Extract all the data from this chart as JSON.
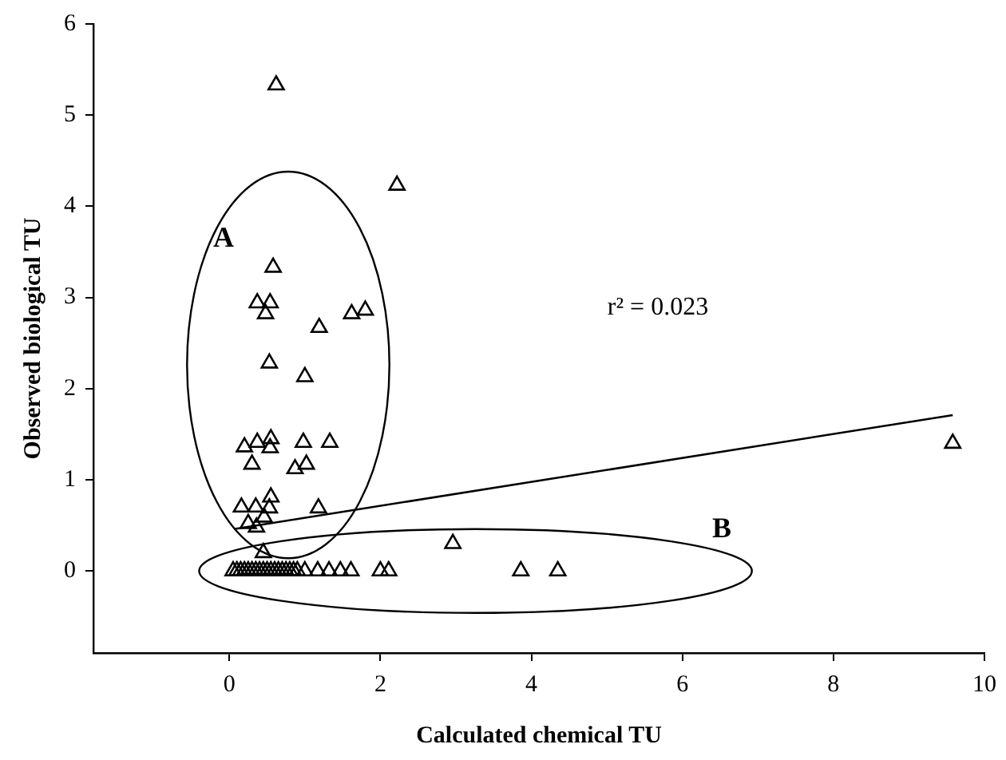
{
  "chart_data": {
    "type": "scatter",
    "xlabel": "Calculated chemical TU",
    "ylabel": "Observed biological TU",
    "xlim": [
      -1.8,
      10
    ],
    "xticks": [
      0,
      2,
      4,
      6,
      8,
      10
    ],
    "ylim": [
      -0.9,
      6
    ],
    "yticks": [
      0,
      1,
      2,
      3,
      4,
      5,
      6
    ],
    "grid": false,
    "legend": false,
    "marker": "triangle",
    "annotations": [
      "A",
      "B",
      "r² = 0.023"
    ],
    "series": [
      {
        "type": "scatter",
        "color": "#000000",
        "x": [
          0.62,
          2.22,
          0.58,
          0.37,
          0.54,
          0.48,
          1.62,
          1.8,
          1.19,
          0.53,
          1.0,
          0.2,
          0.37,
          0.55,
          0.54,
          0.98,
          1.33,
          0.3,
          0.87,
          1.02,
          0.16,
          0.35,
          0.55,
          0.53,
          1.18,
          0.25,
          0.46,
          0.36,
          0.45,
          2.96,
          9.58,
          0.05,
          0.1,
          0.15,
          0.2,
          0.25,
          0.3,
          0.35,
          0.4,
          0.45,
          0.5,
          0.55,
          0.6,
          0.65,
          0.7,
          0.75,
          0.8,
          0.85,
          0.9,
          1.0,
          1.17,
          1.32,
          1.47,
          1.61,
          2.0,
          2.11,
          3.86,
          4.35
        ],
        "values": [
          5.33,
          4.23,
          3.33,
          2.94,
          2.94,
          2.82,
          2.82,
          2.86,
          2.67,
          2.28,
          2.13,
          1.36,
          1.41,
          1.45,
          1.35,
          1.41,
          1.41,
          1.17,
          1.12,
          1.17,
          0.7,
          0.7,
          0.81,
          0.69,
          0.69,
          0.52,
          0.59,
          0.48,
          0.2,
          0.3,
          1.4,
          0,
          0,
          0,
          0,
          0,
          0,
          0,
          0,
          0,
          0,
          0,
          0,
          0,
          0,
          0,
          0,
          0,
          0,
          0,
          0,
          0,
          0,
          0,
          0,
          0,
          0,
          0
        ]
      },
      {
        "type": "line",
        "color": "#000000",
        "marker": "none",
        "x": [
          0.06,
          9.58
        ],
        "values": [
          0.46,
          1.71
        ]
      }
    ]
  }
}
